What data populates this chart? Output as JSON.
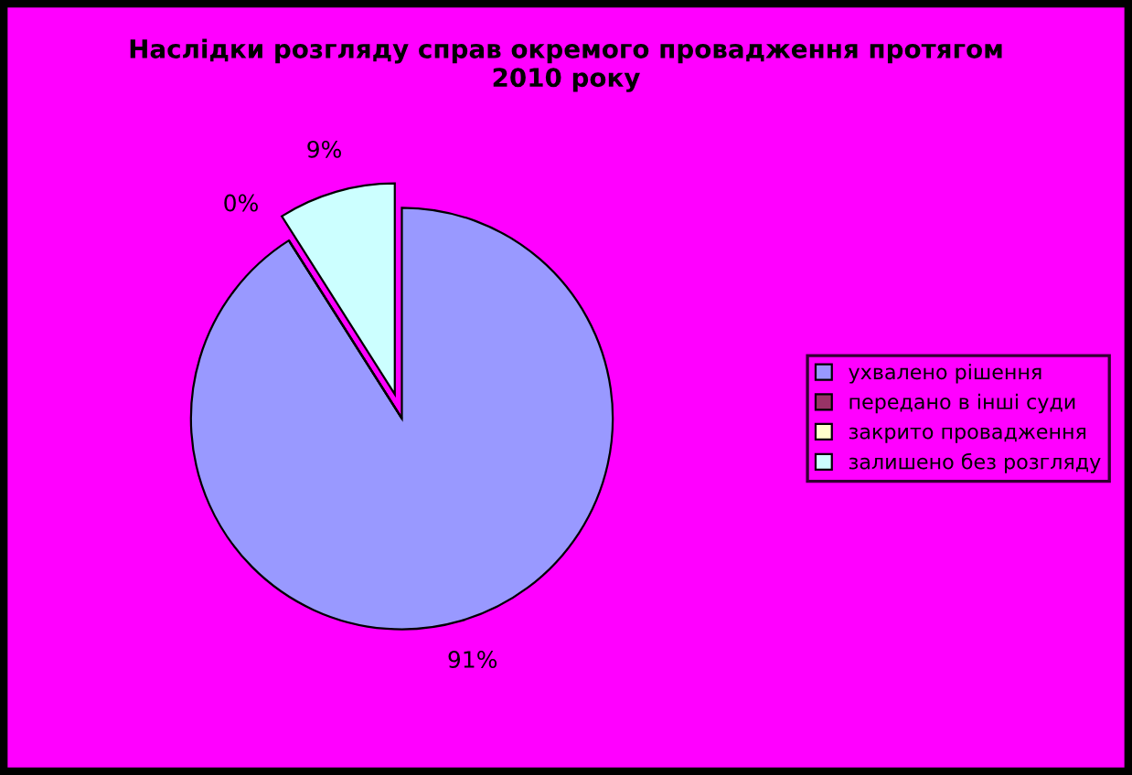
{
  "chart_data": {
    "type": "pie",
    "title": "Наслідки розгляду справ окремого провадження протягом\n2010 року",
    "categories": [
      "ухвалено рішення",
      "передано в інші суди",
      "закрито провадження",
      "залишено без розгляду"
    ],
    "values": [
      91,
      0,
      0,
      9
    ],
    "colors": [
      "#9999ff",
      "#993366",
      "#ffffcc",
      "#ccffff"
    ],
    "value_labels": [
      "91%",
      "0%",
      null,
      "9%"
    ],
    "legend": "right"
  }
}
